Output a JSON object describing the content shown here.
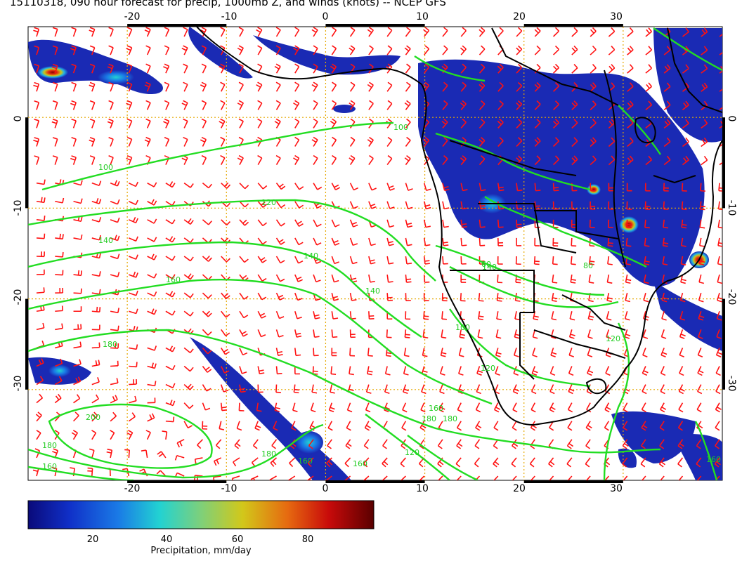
{
  "title": "15110318, 090 hour forecast for precip, 1000mb Z, and winds (knots) -- NCEP GFS",
  "map": {
    "lon_range": [
      -30,
      40
    ],
    "lat_range": [
      -40,
      10
    ],
    "lon_ticks": [
      "-20",
      "-10",
      "0",
      "10",
      "20",
      "30"
    ],
    "lat_ticks": [
      "0",
      "-10",
      "-20",
      "-30"
    ],
    "contour_labels": [
      "100",
      "100",
      "120",
      "140",
      "140",
      "160",
      "180",
      "200",
      "180",
      "160",
      "180",
      "160",
      "160",
      "120",
      "140",
      "160",
      "180",
      "100",
      "120",
      "140",
      "120",
      "80",
      "60",
      "180",
      "160"
    ],
    "colors": {
      "contour": "#22dd22",
      "wind_barb": "#ff1111",
      "graticule": "#e6a800",
      "coast": "#000000"
    }
  },
  "colorbar": {
    "ticks": [
      "20",
      "40",
      "60",
      "80"
    ],
    "label": "Precipitation, mm/day",
    "range": [
      0,
      100
    ]
  }
}
